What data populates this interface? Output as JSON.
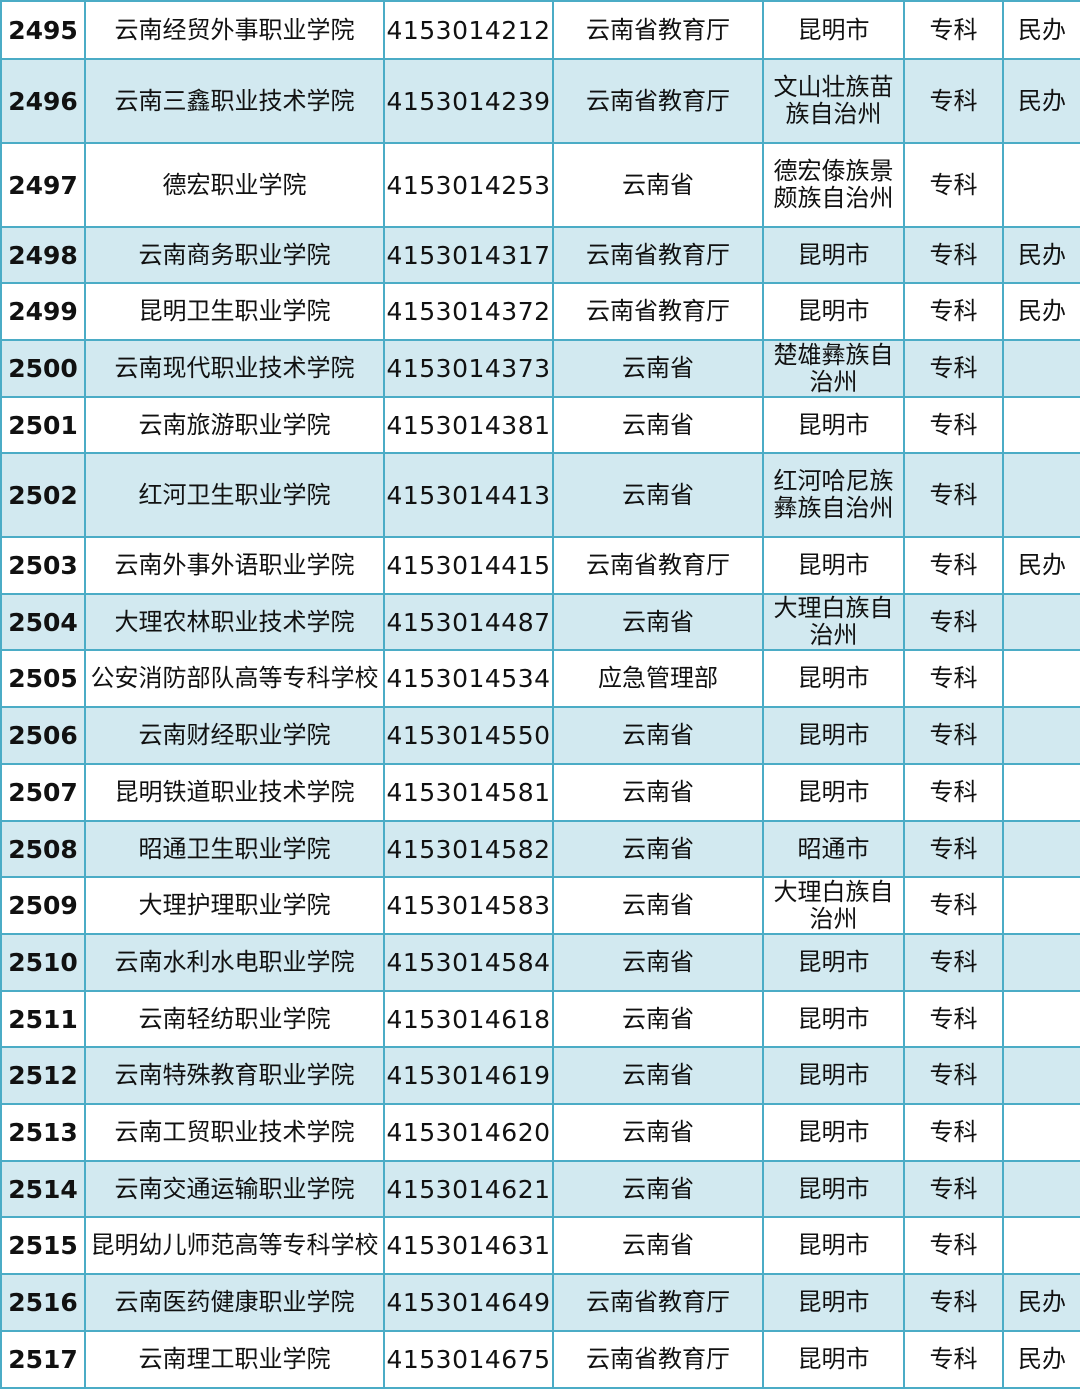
{
  "colors": {
    "border": "#4bacc6",
    "alt_row": "#d2e9f0"
  },
  "rows": [
    {
      "no": "2495",
      "name": "云南经贸外事职业学院",
      "code": "4153014212",
      "dept": "云南省教育厅",
      "loc": "昆明市",
      "level": "专科",
      "note": "民办"
    },
    {
      "no": "2496",
      "name": "云南三鑫职业技术学院",
      "code": "4153014239",
      "dept": "云南省教育厅",
      "loc": "文山壮族苗族自治州",
      "level": "专科",
      "note": "民办"
    },
    {
      "no": "2497",
      "name": "德宏职业学院",
      "code": "4153014253",
      "dept": "云南省",
      "loc": "德宏傣族景颇族自治州",
      "level": "专科",
      "note": ""
    },
    {
      "no": "2498",
      "name": "云南商务职业学院",
      "code": "4153014317",
      "dept": "云南省教育厅",
      "loc": "昆明市",
      "level": "专科",
      "note": "民办"
    },
    {
      "no": "2499",
      "name": "昆明卫生职业学院",
      "code": "4153014372",
      "dept": "云南省教育厅",
      "loc": "昆明市",
      "level": "专科",
      "note": "民办"
    },
    {
      "no": "2500",
      "name": "云南现代职业技术学院",
      "code": "4153014373",
      "dept": "云南省",
      "loc": "楚雄彝族自治州",
      "level": "专科",
      "note": ""
    },
    {
      "no": "2501",
      "name": "云南旅游职业学院",
      "code": "4153014381",
      "dept": "云南省",
      "loc": "昆明市",
      "level": "专科",
      "note": ""
    },
    {
      "no": "2502",
      "name": "红河卫生职业学院",
      "code": "4153014413",
      "dept": "云南省",
      "loc": "红河哈尼族彝族自治州",
      "level": "专科",
      "note": ""
    },
    {
      "no": "2503",
      "name": "云南外事外语职业学院",
      "code": "4153014415",
      "dept": "云南省教育厅",
      "loc": "昆明市",
      "level": "专科",
      "note": "民办"
    },
    {
      "no": "2504",
      "name": "大理农林职业技术学院",
      "code": "4153014487",
      "dept": "云南省",
      "loc": "大理白族自治州",
      "level": "专科",
      "note": ""
    },
    {
      "no": "2505",
      "name": "公安消防部队高等专科学校",
      "code": "4153014534",
      "dept": "应急管理部",
      "loc": "昆明市",
      "level": "专科",
      "note": ""
    },
    {
      "no": "2506",
      "name": "云南财经职业学院",
      "code": "4153014550",
      "dept": "云南省",
      "loc": "昆明市",
      "level": "专科",
      "note": ""
    },
    {
      "no": "2507",
      "name": "昆明铁道职业技术学院",
      "code": "4153014581",
      "dept": "云南省",
      "loc": "昆明市",
      "level": "专科",
      "note": ""
    },
    {
      "no": "2508",
      "name": "昭通卫生职业学院",
      "code": "4153014582",
      "dept": "云南省",
      "loc": "昭通市",
      "level": "专科",
      "note": ""
    },
    {
      "no": "2509",
      "name": "大理护理职业学院",
      "code": "4153014583",
      "dept": "云南省",
      "loc": "大理白族自治州",
      "level": "专科",
      "note": ""
    },
    {
      "no": "2510",
      "name": "云南水利水电职业学院",
      "code": "4153014584",
      "dept": "云南省",
      "loc": "昆明市",
      "level": "专科",
      "note": ""
    },
    {
      "no": "2511",
      "name": "云南轻纺职业学院",
      "code": "4153014618",
      "dept": "云南省",
      "loc": "昆明市",
      "level": "专科",
      "note": ""
    },
    {
      "no": "2512",
      "name": "云南特殊教育职业学院",
      "code": "4153014619",
      "dept": "云南省",
      "loc": "昆明市",
      "level": "专科",
      "note": ""
    },
    {
      "no": "2513",
      "name": "云南工贸职业技术学院",
      "code": "4153014620",
      "dept": "云南省",
      "loc": "昆明市",
      "level": "专科",
      "note": ""
    },
    {
      "no": "2514",
      "name": "云南交通运输职业学院",
      "code": "4153014621",
      "dept": "云南省",
      "loc": "昆明市",
      "level": "专科",
      "note": ""
    },
    {
      "no": "2515",
      "name": "昆明幼儿师范高等专科学校",
      "code": "4153014631",
      "dept": "云南省",
      "loc": "昆明市",
      "level": "专科",
      "note": ""
    },
    {
      "no": "2516",
      "name": "云南医药健康职业学院",
      "code": "4153014649",
      "dept": "云南省教育厅",
      "loc": "昆明市",
      "level": "专科",
      "note": "民办"
    },
    {
      "no": "2517",
      "name": "云南理工职业学院",
      "code": "4153014675",
      "dept": "云南省教育厅",
      "loc": "昆明市",
      "level": "专科",
      "note": "民办"
    }
  ]
}
